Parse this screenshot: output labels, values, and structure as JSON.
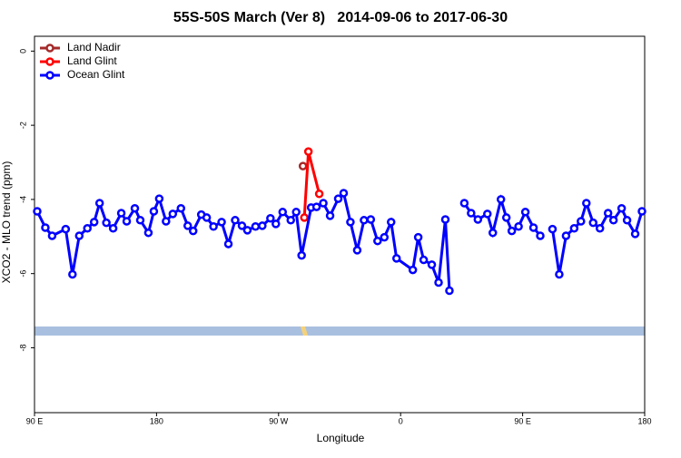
{
  "chart_data": {
    "type": "line",
    "title": "55S-50S March (Ver 8)   2014-09-06 to 2017-06-30",
    "x_label": "Longitude",
    "y_label": "XCO2 - MLO trend (ppm)",
    "xlim": [
      90,
      540
    ],
    "xticks": [
      {
        "value": 90,
        "label": "90 E"
      },
      {
        "value": 180,
        "label": "180"
      },
      {
        "value": 270,
        "label": "90 W"
      },
      {
        "value": 360,
        "label": "0"
      },
      {
        "value": 450,
        "label": "90 E"
      },
      {
        "value": 540,
        "label": "180"
      }
    ],
    "ylim": [
      -9.75,
      0.4
    ],
    "yticks": [
      0,
      -2,
      -4,
      -6,
      -8
    ],
    "legend": "top-left",
    "series": [
      {
        "name": "Land Nadir",
        "color": "#a52a2a",
        "x": [
          288
        ],
        "values": [
          -3.1
        ]
      },
      {
        "name": "Land Glint",
        "color": "#ff0000",
        "x": [
          289,
          292,
          300
        ],
        "values": [
          -4.49,
          -2.71,
          -3.85
        ]
      },
      {
        "name": "Ocean Glint",
        "color": "#0000ff",
        "x": [
          92,
          98,
          103,
          113,
          118,
          123,
          129,
          134,
          138,
          143,
          148,
          154,
          158,
          164,
          168,
          174,
          178,
          182,
          187,
          192,
          198,
          203,
          207,
          213,
          217,
          222,
          228,
          233,
          238,
          243,
          247,
          253,
          258,
          264,
          268,
          273,
          279,
          283,
          287,
          294,
          298,
          303,
          308,
          314,
          318,
          323,
          328,
          333,
          338,
          343,
          348,
          353,
          357,
          369,
          373,
          377,
          383,
          388,
          393,
          396,
          404,
          407,
          412,
          417,
          424,
          428,
          434,
          438,
          442,
          447,
          452,
          458,
          463,
          466,
          472,
          477,
          482,
          488,
          493,
          497,
          502,
          507,
          513,
          517,
          523,
          527,
          533,
          538
        ],
        "values": [
          -4.32,
          -4.76,
          -4.98,
          -4.8,
          -6.02,
          -4.98,
          -4.78,
          -4.61,
          -4.1,
          -4.63,
          -4.78,
          -4.37,
          -4.59,
          -4.24,
          -4.56,
          -4.9,
          -4.32,
          -3.98,
          -4.59,
          -4.39,
          -4.24,
          -4.71,
          -4.85,
          -4.41,
          -4.49,
          -4.73,
          -4.61,
          -5.2,
          -4.56,
          -4.71,
          -4.83,
          -4.73,
          -4.71,
          -4.51,
          -4.66,
          -4.34,
          -4.56,
          -4.34,
          -5.51,
          -4.22,
          -4.2,
          -4.1,
          -4.44,
          -3.98,
          -3.83,
          -4.61,
          -5.37,
          -4.56,
          -4.54,
          -5.12,
          -5.02,
          -4.61,
          -5.59,
          -5.9,
          -5.02,
          -5.63,
          -5.76,
          -6.24,
          -4.54,
          -6.46,
          null,
          -4.1,
          -4.37,
          -4.54,
          -4.39,
          -4.9,
          -4.0,
          -4.49,
          -4.85,
          -4.73,
          -4.34,
          -4.76,
          -4.98,
          null,
          -4.8,
          -6.02,
          -4.98,
          -4.78,
          -4.59,
          -4.1,
          -4.63,
          -4.78,
          -4.37,
          -4.56,
          -4.24,
          -4.56,
          -4.93,
          -4.32
        ]
      }
    ]
  }
}
